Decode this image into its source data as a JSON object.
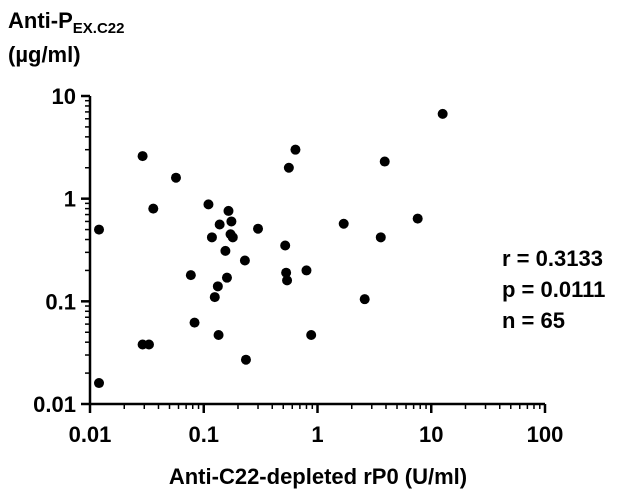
{
  "chart_data": {
    "type": "scatter",
    "title": "",
    "ylabel": {
      "main": "Anti-P",
      "sub": "EX.C22",
      "unit": "(µg/ml)"
    },
    "xlabel": "Anti-C22-depleted rP0  (U/ml)",
    "x_scale": "log",
    "y_scale": "log",
    "xlim": [
      0.01,
      100
    ],
    "ylim": [
      0.01,
      10
    ],
    "x_ticks": [
      "0.01",
      "0.1",
      "1",
      "10",
      "100"
    ],
    "y_ticks": [
      "0.01",
      "0.1",
      "1",
      "10"
    ],
    "grid": false,
    "stats": [
      {
        "label": "r = 0.3133"
      },
      {
        "label": "p = 0.0111"
      },
      {
        "label": "n = 65"
      }
    ],
    "points": [
      {
        "x": 0.012,
        "y": 0.016
      },
      {
        "x": 0.012,
        "y": 0.5
      },
      {
        "x": 0.029,
        "y": 2.6
      },
      {
        "x": 0.029,
        "y": 0.038
      },
      {
        "x": 0.033,
        "y": 0.038
      },
      {
        "x": 0.036,
        "y": 0.8
      },
      {
        "x": 0.057,
        "y": 1.6
      },
      {
        "x": 0.077,
        "y": 0.18
      },
      {
        "x": 0.083,
        "y": 0.062
      },
      {
        "x": 0.11,
        "y": 0.88
      },
      {
        "x": 0.118,
        "y": 0.42
      },
      {
        "x": 0.125,
        "y": 0.11
      },
      {
        "x": 0.133,
        "y": 0.14
      },
      {
        "x": 0.135,
        "y": 0.047
      },
      {
        "x": 0.138,
        "y": 0.56
      },
      {
        "x": 0.155,
        "y": 0.31
      },
      {
        "x": 0.16,
        "y": 0.17
      },
      {
        "x": 0.165,
        "y": 0.76
      },
      {
        "x": 0.172,
        "y": 0.45
      },
      {
        "x": 0.175,
        "y": 0.6
      },
      {
        "x": 0.18,
        "y": 0.42
      },
      {
        "x": 0.23,
        "y": 0.25
      },
      {
        "x": 0.235,
        "y": 0.027
      },
      {
        "x": 0.3,
        "y": 0.51
      },
      {
        "x": 0.52,
        "y": 0.35
      },
      {
        "x": 0.53,
        "y": 0.19
      },
      {
        "x": 0.54,
        "y": 0.16
      },
      {
        "x": 0.56,
        "y": 2.0
      },
      {
        "x": 0.64,
        "y": 3.0
      },
      {
        "x": 0.8,
        "y": 0.2
      },
      {
        "x": 0.88,
        "y": 0.047
      },
      {
        "x": 1.7,
        "y": 0.57
      },
      {
        "x": 2.6,
        "y": 0.105
      },
      {
        "x": 3.6,
        "y": 0.42
      },
      {
        "x": 3.9,
        "y": 2.3
      },
      {
        "x": 7.6,
        "y": 0.64
      },
      {
        "x": 12.6,
        "y": 6.7
      }
    ]
  }
}
